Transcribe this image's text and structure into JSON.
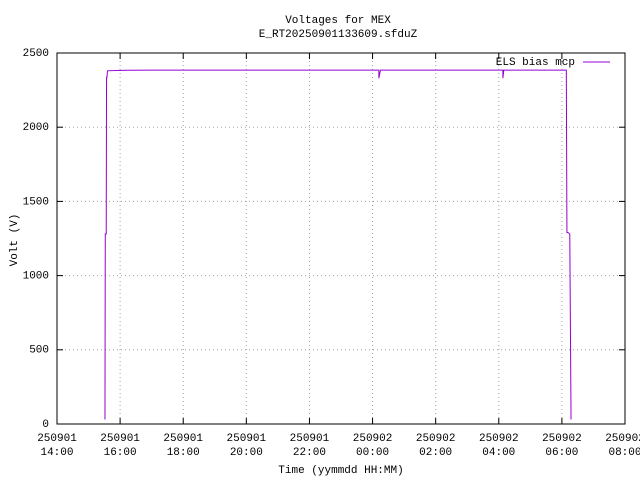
{
  "chart_data": {
    "type": "line",
    "title": "Voltages for MEX",
    "subtitle": "E_RT20250901133609.sfduZ",
    "x_label": "Time (yymmdd HH:MM)",
    "y_label": "Volt (V)",
    "xlim": [
      14,
      32
    ],
    "ylim": [
      0,
      2500
    ],
    "xticks": [
      {
        "value": 14,
        "label": "250901 14:00"
      },
      {
        "value": 16,
        "label": "250901 16:00"
      },
      {
        "value": 18,
        "label": "250901 18:00"
      },
      {
        "value": 20,
        "label": "250901 20:00"
      },
      {
        "value": 22,
        "label": "250901 22:00"
      },
      {
        "value": 24,
        "label": "250902 00:00"
      },
      {
        "value": 26,
        "label": "250902 02:00"
      },
      {
        "value": 28,
        "label": "250902 04:00"
      },
      {
        "value": 30,
        "label": "250902 06:00"
      },
      {
        "value": 32,
        "label": "250902 08:00"
      }
    ],
    "yticks": [
      0,
      500,
      1000,
      1500,
      2000,
      2500
    ],
    "grid": true,
    "legend": "top-right",
    "x": [
      15.52,
      15.53,
      15.56,
      15.57,
      15.58,
      15.6,
      16.0,
      17.0,
      18.0,
      20.0,
      22.0,
      24.15,
      24.2,
      24.2,
      24.25,
      26.0,
      28.1,
      28.13,
      28.13,
      28.16,
      30.0,
      30.14,
      30.16,
      30.2,
      30.25,
      30.29
    ],
    "series": [
      {
        "name": "ELS bias mcp",
        "color": "#9400d3",
        "values": [
          30,
          1280,
          1280,
          2340,
          2330,
          2380,
          2383,
          2385,
          2385,
          2385,
          2385,
          2385,
          2385,
          2330,
          2385,
          2385,
          2385,
          2385,
          2330,
          2385,
          2385,
          2385,
          1290,
          1290,
          1280,
          30
        ]
      }
    ]
  }
}
